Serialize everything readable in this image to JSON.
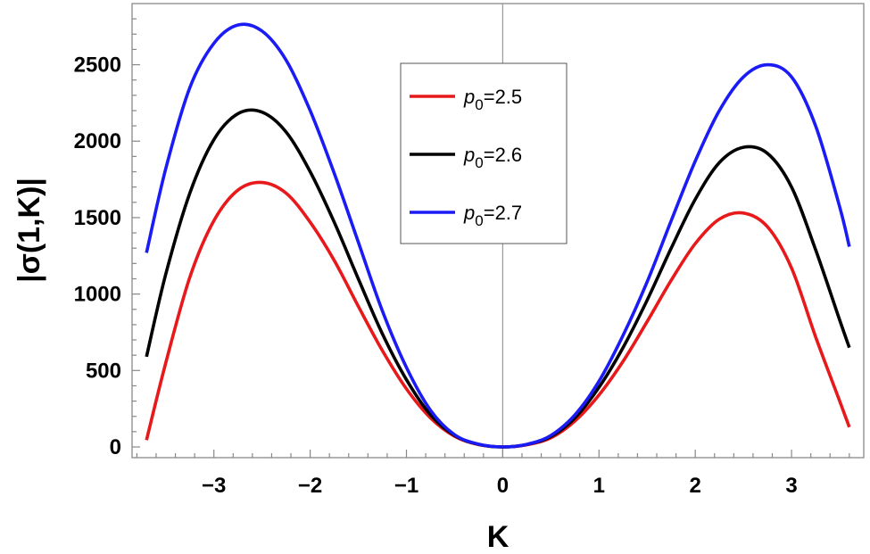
{
  "chart_data": {
    "type": "line",
    "xlabel": "K",
    "ylabel": "|σ(1,K)|",
    "xlim": [
      -3.85,
      3.75
    ],
    "ylim": [
      -70,
      2900
    ],
    "xticks": [
      -3,
      -2,
      -1,
      0,
      1,
      2,
      3
    ],
    "xtick_labels": [
      "−3",
      "−2",
      "−1",
      "0",
      "1",
      "2",
      "3"
    ],
    "yticks": [
      0,
      500,
      1000,
      1500,
      2000,
      2500
    ],
    "ytick_labels": [
      "0",
      "500",
      "1000",
      "1500",
      "2000",
      "2500"
    ],
    "grid": false,
    "legend_position": "top-center",
    "x": [
      -3.7,
      -3.5,
      -3.25,
      -3.0,
      -2.75,
      -2.5,
      -2.25,
      -2.0,
      -1.75,
      -1.5,
      -1.25,
      -1.0,
      -0.75,
      -0.5,
      -0.25,
      0.0,
      0.25,
      0.5,
      0.75,
      1.0,
      1.25,
      1.5,
      1.75,
      2.0,
      2.25,
      2.5,
      2.75,
      3.0,
      3.25,
      3.5,
      3.6
    ],
    "series": [
      {
        "name": "p0=2.5",
        "legend_base": "p",
        "legend_sub": "0",
        "legend_value": "=2.5",
        "color": "#e8191b",
        "values": [
          45,
          550,
          1110,
          1480,
          1680,
          1730,
          1660,
          1470,
          1220,
          920,
          630,
          380,
          190,
          70,
          15,
          0,
          14,
          60,
          170,
          340,
          560,
          820,
          1090,
          1330,
          1490,
          1530,
          1440,
          1170,
          720,
          300,
          130
        ]
      },
      {
        "name": "p0=2.6",
        "legend_base": "p",
        "legend_sub": "0",
        "legend_value": "=2.6",
        "color": "#000000",
        "values": [
          590,
          1130,
          1660,
          2010,
          2180,
          2190,
          2060,
          1800,
          1470,
          1100,
          740,
          440,
          210,
          75,
          17,
          0,
          16,
          68,
          190,
          390,
          650,
          960,
          1300,
          1620,
          1860,
          1960,
          1920,
          1700,
          1290,
          830,
          650
        ]
      },
      {
        "name": "p0=2.7",
        "legend_base": "p",
        "legend_sub": "0",
        "legend_value": "=2.7",
        "color": "#1b1bf5",
        "values": [
          1270,
          1820,
          2350,
          2640,
          2760,
          2720,
          2530,
          2200,
          1790,
          1340,
          890,
          520,
          240,
          80,
          18,
          0,
          17,
          75,
          210,
          430,
          730,
          1080,
          1480,
          1870,
          2200,
          2420,
          2500,
          2420,
          2100,
          1570,
          1310
        ]
      }
    ]
  }
}
